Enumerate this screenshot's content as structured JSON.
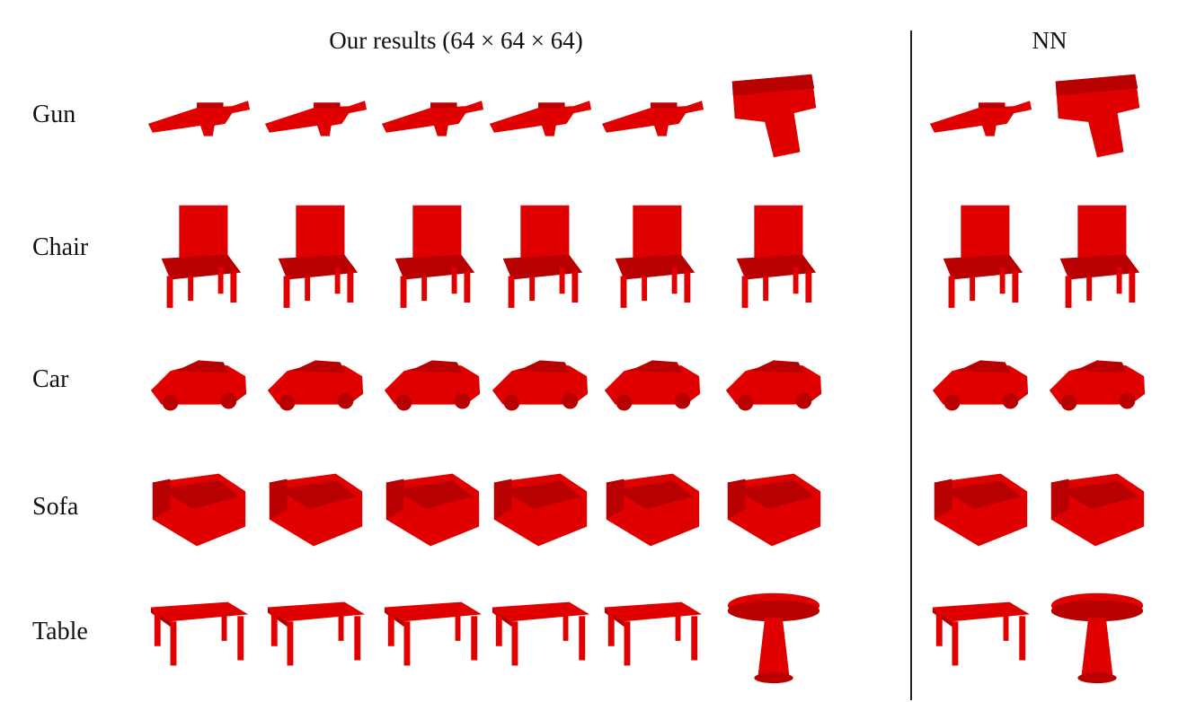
{
  "figure": {
    "header_ours": "Our results (64 × 64 × 64)",
    "header_nn": "NN",
    "shape_color": "#e00000",
    "shape_shade": "#b80000",
    "rows": [
      {
        "label": "Gun",
        "ours": [
          "rifle-icon",
          "rifle-icon",
          "rifle-icon",
          "rifle-icon",
          "rifle-icon",
          "pistol-icon"
        ],
        "nn": [
          "rifle-icon",
          "pistol-icon"
        ]
      },
      {
        "label": "Chair",
        "ours": [
          "chair-icon",
          "chair-icon",
          "chair-icon",
          "chair-icon",
          "chair-icon",
          "chair-icon"
        ],
        "nn": [
          "chair-icon",
          "chair-icon"
        ]
      },
      {
        "label": "Car",
        "ours": [
          "car-icon",
          "car-icon",
          "car-icon",
          "car-icon",
          "car-icon",
          "car-icon"
        ],
        "nn": [
          "car-icon",
          "car-icon"
        ]
      },
      {
        "label": "Sofa",
        "ours": [
          "sofa-icon",
          "sofa-icon",
          "sofa-icon",
          "sofa-icon",
          "sofa-icon",
          "sofa-icon"
        ],
        "nn": [
          "sofa-icon",
          "sofa-icon"
        ]
      },
      {
        "label": "Table",
        "ours": [
          "table-icon",
          "table-icon",
          "table-icon",
          "table-icon",
          "table-icon",
          "round-table-icon"
        ],
        "nn": [
          "table-icon",
          "round-table-icon"
        ]
      }
    ]
  }
}
